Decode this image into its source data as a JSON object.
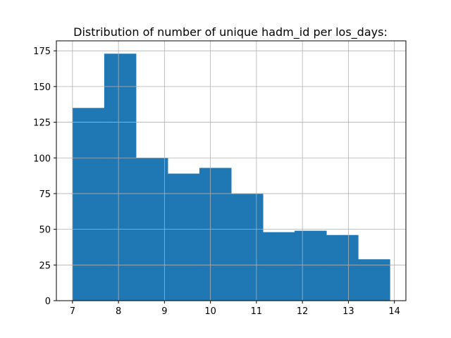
{
  "chart_data": {
    "type": "bar",
    "title": "Distribution of number of unique hadm_id per los_days:",
    "xlabel": "",
    "ylabel": "",
    "bins": [
      {
        "x0": 7.0,
        "x1": 7.69,
        "value": 135
      },
      {
        "x0": 7.69,
        "x1": 8.38,
        "value": 173
      },
      {
        "x0": 8.38,
        "x1": 9.07,
        "value": 100
      },
      {
        "x0": 9.07,
        "x1": 9.76,
        "value": 89
      },
      {
        "x0": 9.76,
        "x1": 10.45,
        "value": 93
      },
      {
        "x0": 10.45,
        "x1": 11.14,
        "value": 75
      },
      {
        "x0": 11.14,
        "x1": 11.83,
        "value": 48
      },
      {
        "x0": 11.83,
        "x1": 12.52,
        "value": 49
      },
      {
        "x0": 12.52,
        "x1": 13.21,
        "value": 46
      },
      {
        "x0": 13.21,
        "x1": 13.9,
        "value": 29
      }
    ],
    "xlim": [
      6.65,
      14.25
    ],
    "ylim": [
      0,
      182
    ],
    "xticks": [
      7,
      8,
      9,
      10,
      11,
      12,
      13,
      14
    ],
    "yticks": [
      0,
      25,
      50,
      75,
      100,
      125,
      150,
      175
    ],
    "grid": true,
    "bar_color": "#1f77b4",
    "grid_color": "#b0b0b0"
  }
}
